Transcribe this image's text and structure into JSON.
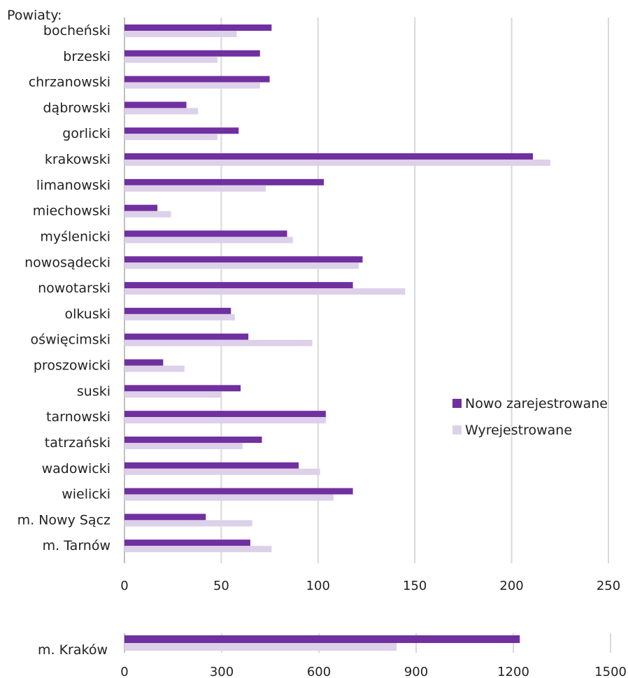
{
  "chart_data": [
    {
      "type": "bar",
      "orientation": "horizontal",
      "title": "Powiaty:",
      "categories": [
        "bocheński",
        "brzeski",
        "chrzanowski",
        "dąbrowski",
        "gorlicki",
        "krakowski",
        "limanowski",
        "miechowski",
        "myślenicki",
        "nowosądecki",
        "nowotarski",
        "olkuski",
        "oświęcimski",
        "proszowicki",
        "suski",
        "tarnowski",
        "tatrzański",
        "wadowicki",
        "wielicki",
        "m. Nowy Sącz",
        "m. Tarnów"
      ],
      "series": [
        {
          "name": "Nowo zarejestrowane",
          "color": "#7030a0",
          "values": [
            76,
            70,
            75,
            32,
            59,
            211,
            103,
            17,
            84,
            123,
            118,
            55,
            64,
            20,
            60,
            104,
            71,
            90,
            118,
            42,
            65
          ]
        },
        {
          "name": "Wyrejestrowane",
          "color": "#ddd0e9",
          "values": [
            58,
            48,
            70,
            38,
            48,
            220,
            73,
            24,
            87,
            121,
            145,
            57,
            97,
            31,
            50,
            104,
            61,
            101,
            108,
            66,
            76
          ]
        }
      ],
      "xticks": [
        "0",
        "50",
        "100",
        "150",
        "200",
        "250"
      ],
      "xlim": [
        0,
        250
      ],
      "grid": "vertical",
      "legend": "right"
    },
    {
      "type": "bar",
      "orientation": "horizontal",
      "categories": [
        "m. Kraków"
      ],
      "series": [
        {
          "name": "Nowo zarejestrowane",
          "color": "#7030a0",
          "values": [
            1220
          ]
        },
        {
          "name": "Wyrejestrowane",
          "color": "#ddd0e9",
          "values": [
            840
          ]
        }
      ],
      "xticks": [
        "0",
        "300",
        "600",
        "900",
        "1200",
        "1500"
      ],
      "xlim": [
        0,
        1500
      ],
      "grid": "vertical"
    }
  ]
}
